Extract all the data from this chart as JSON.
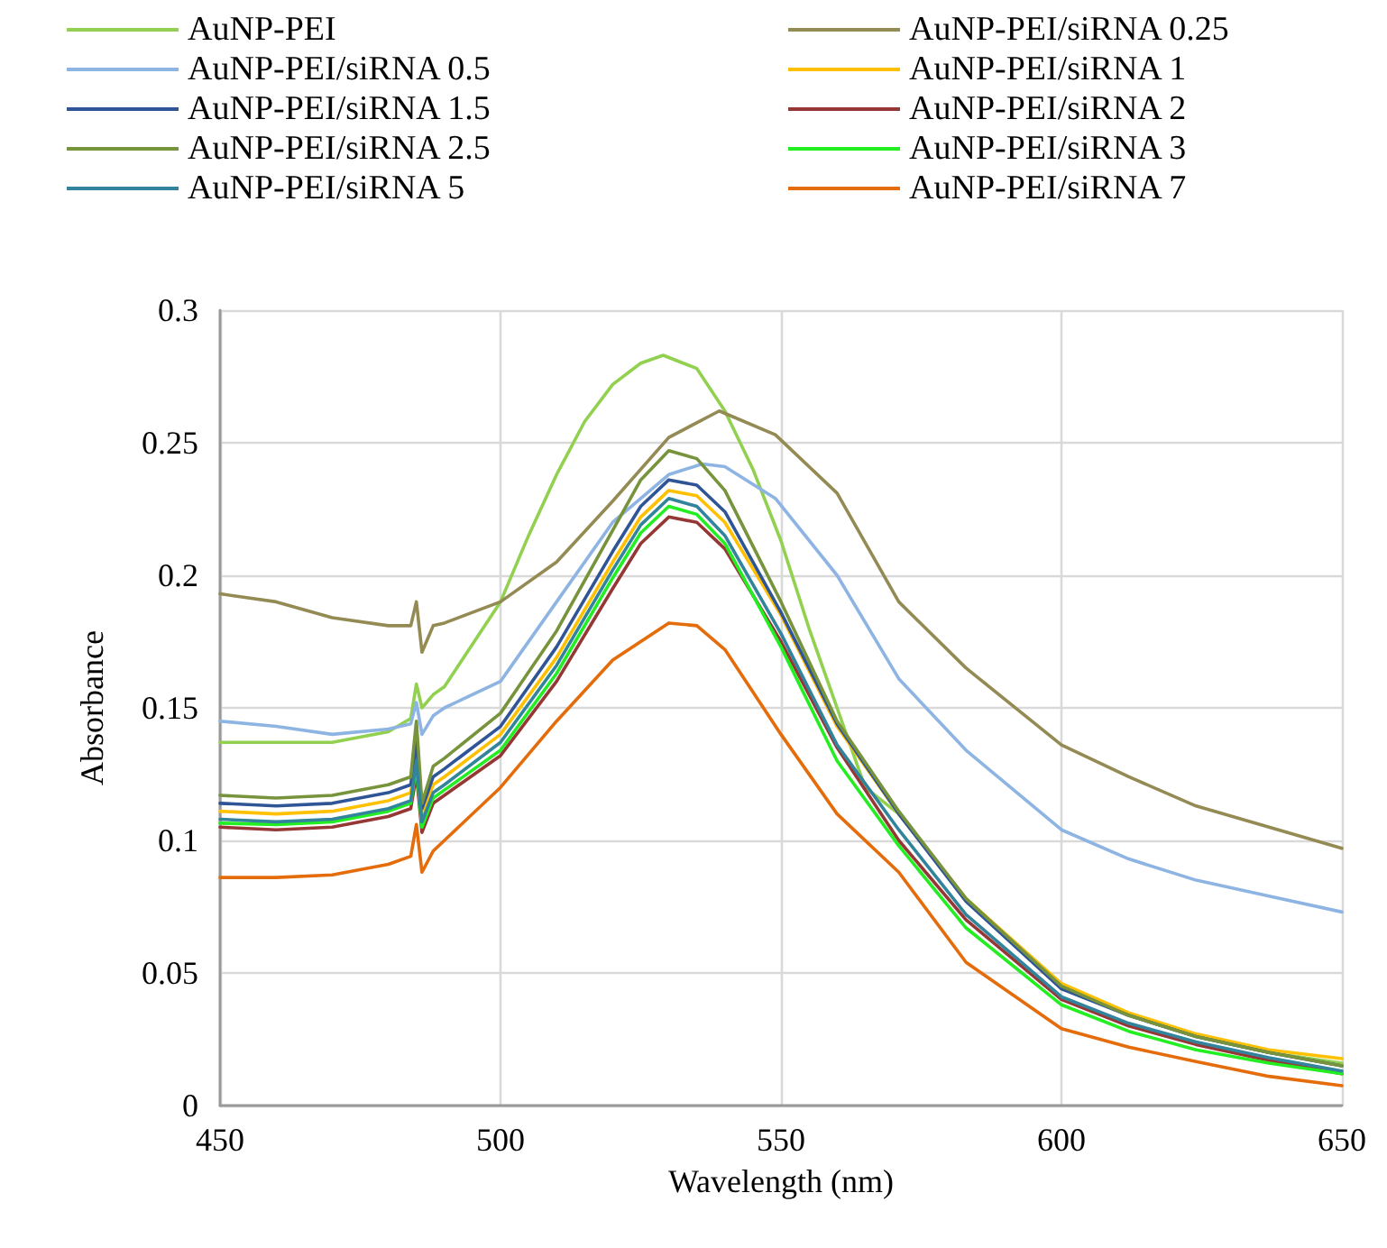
{
  "chart_data": {
    "type": "line",
    "xlabel": "Wavelength (nm)",
    "ylabel": "Absorbance",
    "xlim": [
      450,
      650
    ],
    "xticks": [
      450,
      500,
      550,
      600,
      650
    ],
    "ylim": [
      0,
      0.3
    ],
    "yticks": [
      0,
      0.05,
      0.1,
      0.15,
      0.2,
      0.25,
      0.3
    ],
    "grid": true,
    "legend": "top",
    "marker": "none",
    "line_style": "solid",
    "series": [
      {
        "name": "AuNP-PEI",
        "color": "#92d050",
        "x": [
          450,
          460,
          470,
          480,
          484,
          485,
          486,
          488,
          490,
          500,
          505,
          510,
          515,
          520,
          525,
          529,
          535,
          540,
          545,
          550,
          555,
          560,
          565,
          571,
          583,
          600,
          612,
          624,
          637,
          650
        ],
        "values": [
          0.137,
          0.137,
          0.137,
          0.141,
          0.146,
          0.159,
          0.15,
          0.155,
          0.158,
          0.19,
          0.215,
          0.238,
          0.258,
          0.272,
          0.28,
          0.283,
          0.278,
          0.262,
          0.24,
          0.213,
          0.18,
          0.15,
          0.12,
          0.11,
          0.078,
          0.045,
          0.034,
          0.026,
          0.02,
          0.016
        ]
      },
      {
        "name": "AuNP-PEI/siRNA 0.25",
        "color": "#948a54",
        "x": [
          450,
          460,
          470,
          480,
          484,
          485,
          486,
          488,
          490,
          500,
          510,
          520,
          530,
          539,
          549,
          560,
          571,
          583,
          600,
          612,
          624,
          637,
          650
        ],
        "values": [
          0.193,
          0.19,
          0.184,
          0.181,
          0.181,
          0.19,
          0.171,
          0.181,
          0.182,
          0.19,
          0.205,
          0.228,
          0.252,
          0.262,
          0.253,
          0.231,
          0.19,
          0.165,
          0.136,
          0.124,
          0.113,
          0.105,
          0.097
        ]
      },
      {
        "name": "AuNP-PEI/siRNA 0.5",
        "color": "#8db4e2",
        "x": [
          450,
          460,
          470,
          480,
          484,
          485,
          486,
          488,
          490,
          500,
          510,
          520,
          530,
          536,
          540,
          549,
          560,
          571,
          583,
          600,
          612,
          624,
          637,
          650
        ],
        "values": [
          0.145,
          0.143,
          0.14,
          0.142,
          0.144,
          0.152,
          0.14,
          0.147,
          0.15,
          0.16,
          0.19,
          0.22,
          0.238,
          0.242,
          0.241,
          0.229,
          0.2,
          0.161,
          0.134,
          0.104,
          0.093,
          0.085,
          0.079,
          0.073
        ]
      },
      {
        "name": "AuNP-PEI/siRNA 1",
        "color": "#ffc000",
        "x": [
          450,
          460,
          470,
          480,
          484,
          485,
          486,
          488,
          490,
          500,
          510,
          520,
          525,
          530,
          535,
          540,
          550,
          560,
          571,
          583,
          600,
          612,
          624,
          637,
          650
        ],
        "values": [
          0.111,
          0.11,
          0.111,
          0.115,
          0.118,
          0.132,
          0.11,
          0.121,
          0.124,
          0.14,
          0.169,
          0.205,
          0.222,
          0.232,
          0.23,
          0.22,
          0.185,
          0.143,
          0.11,
          0.078,
          0.046,
          0.035,
          0.027,
          0.021,
          0.0177
        ]
      },
      {
        "name": "AuNP-PEI/siRNA 1.5",
        "color": "#2f5597",
        "x": [
          450,
          460,
          470,
          480,
          484,
          485,
          486,
          488,
          490,
          500,
          510,
          520,
          525,
          530,
          535,
          540,
          550,
          560,
          571,
          583,
          600,
          612,
          624,
          637,
          650
        ],
        "values": [
          0.114,
          0.113,
          0.114,
          0.118,
          0.121,
          0.137,
          0.112,
          0.124,
          0.127,
          0.143,
          0.173,
          0.209,
          0.226,
          0.236,
          0.234,
          0.224,
          0.186,
          0.144,
          0.11,
          0.077,
          0.044,
          0.034,
          0.026,
          0.02,
          0.015
        ]
      },
      {
        "name": "AuNP-PEI/siRNA 2",
        "color": "#953735",
        "x": [
          450,
          460,
          470,
          480,
          484,
          485,
          486,
          488,
          490,
          500,
          510,
          520,
          525,
          530,
          535,
          540,
          550,
          560,
          571,
          583,
          600,
          612,
          624,
          637,
          650
        ],
        "values": [
          0.105,
          0.104,
          0.105,
          0.109,
          0.112,
          0.125,
          0.103,
          0.114,
          0.117,
          0.132,
          0.16,
          0.195,
          0.212,
          0.222,
          0.22,
          0.21,
          0.175,
          0.135,
          0.1,
          0.07,
          0.04,
          0.03,
          0.023,
          0.017,
          0.012
        ]
      },
      {
        "name": "AuNP-PEI/siRNA 2.5",
        "color": "#77933c",
        "x": [
          450,
          460,
          470,
          480,
          484,
          485,
          486,
          488,
          490,
          500,
          510,
          520,
          525,
          530,
          535,
          540,
          550,
          560,
          571,
          583,
          600,
          612,
          624,
          637,
          650
        ],
        "values": [
          0.117,
          0.116,
          0.117,
          0.121,
          0.124,
          0.145,
          0.114,
          0.128,
          0.131,
          0.148,
          0.179,
          0.217,
          0.236,
          0.247,
          0.244,
          0.232,
          0.19,
          0.145,
          0.111,
          0.078,
          0.045,
          0.034,
          0.026,
          0.02,
          0.015
        ]
      },
      {
        "name": "AuNP-PEI/siRNA 3",
        "color": "#22ee22",
        "x": [
          450,
          460,
          470,
          480,
          484,
          485,
          486,
          488,
          490,
          500,
          510,
          520,
          525,
          530,
          535,
          540,
          550,
          560,
          571,
          583,
          600,
          612,
          624,
          637,
          650
        ],
        "values": [
          0.1065,
          0.106,
          0.107,
          0.111,
          0.114,
          0.128,
          0.105,
          0.116,
          0.119,
          0.134,
          0.163,
          0.199,
          0.216,
          0.226,
          0.223,
          0.212,
          0.173,
          0.13,
          0.098,
          0.067,
          0.038,
          0.028,
          0.021,
          0.016,
          0.012
        ]
      },
      {
        "name": "AuNP-PEI/siRNA 5",
        "color": "#31849b",
        "x": [
          450,
          460,
          470,
          480,
          484,
          485,
          486,
          488,
          490,
          500,
          510,
          520,
          525,
          530,
          535,
          540,
          550,
          560,
          571,
          583,
          600,
          612,
          624,
          637,
          650
        ],
        "values": [
          0.108,
          0.107,
          0.108,
          0.112,
          0.115,
          0.13,
          0.107,
          0.118,
          0.121,
          0.137,
          0.166,
          0.202,
          0.219,
          0.229,
          0.226,
          0.215,
          0.178,
          0.136,
          0.104,
          0.072,
          0.041,
          0.031,
          0.024,
          0.018,
          0.013
        ]
      },
      {
        "name": "AuNP-PEI/siRNA 7",
        "color": "#e46c0a",
        "x": [
          450,
          460,
          470,
          480,
          484,
          485,
          486,
          488,
          490,
          500,
          510,
          520,
          530,
          535,
          540,
          550,
          560,
          571,
          583,
          600,
          612,
          624,
          637,
          650
        ],
        "values": [
          0.086,
          0.086,
          0.087,
          0.091,
          0.094,
          0.106,
          0.088,
          0.096,
          0.1,
          0.12,
          0.145,
          0.168,
          0.182,
          0.181,
          0.172,
          0.14,
          0.11,
          0.088,
          0.054,
          0.029,
          0.022,
          0.0166,
          0.011,
          0.0075
        ]
      }
    ]
  }
}
